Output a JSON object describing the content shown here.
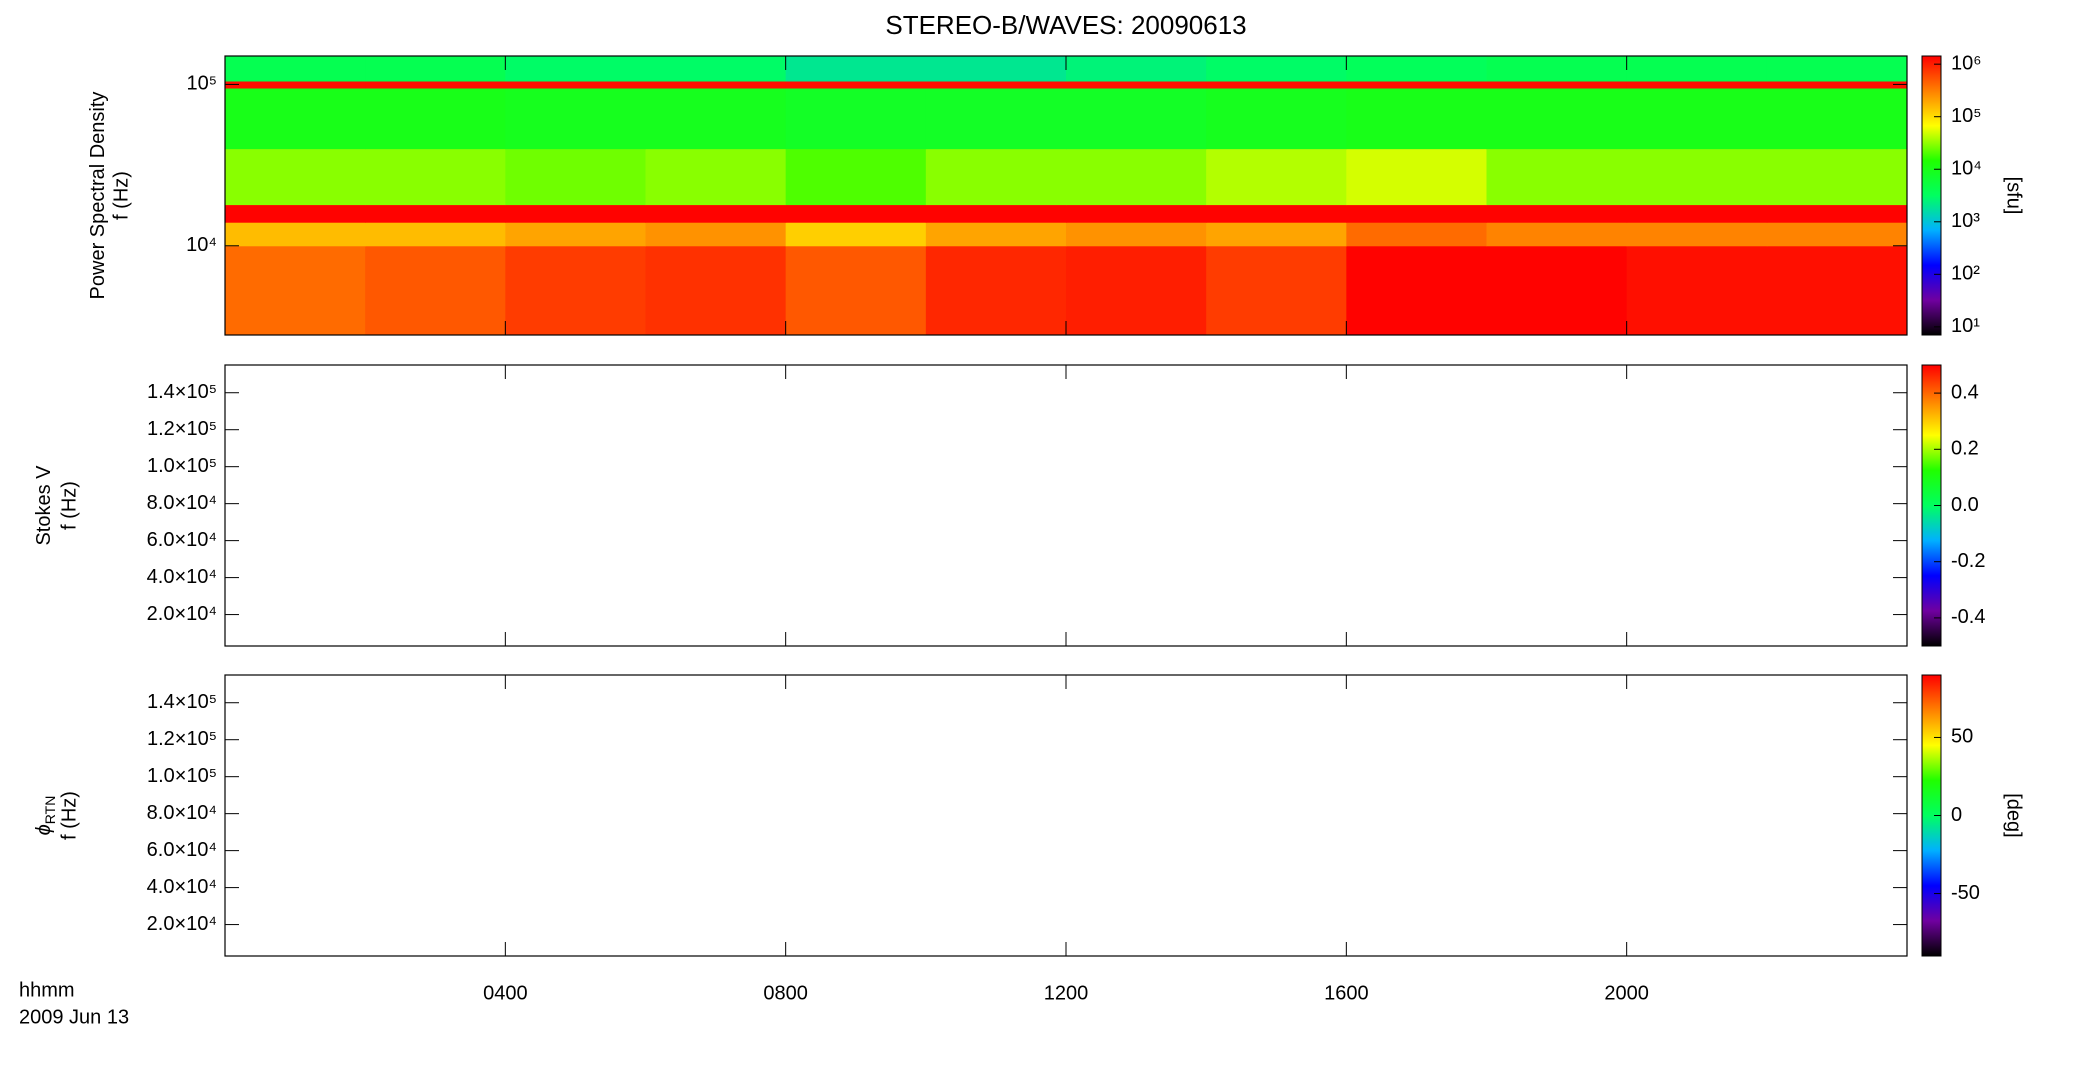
{
  "title": "STEREO-B/WAVES: 20090613",
  "x_axis": {
    "label": "hhmm",
    "date": "2009 Jun 13",
    "xlim": [
      0,
      24
    ],
    "xticks": [
      {
        "value": 4,
        "label": "0400"
      },
      {
        "value": 8,
        "label": "0800"
      },
      {
        "value": 12,
        "label": "1200"
      },
      {
        "value": 16,
        "label": "1600"
      },
      {
        "value": 20,
        "label": "2000"
      }
    ]
  },
  "colormap": [
    "#000000",
    "#7000a0",
    "#0000ff",
    "#00b0ff",
    "#00ff60",
    "#20ff00",
    "#ffff00",
    "#ff8000",
    "#ff0000"
  ],
  "chart_data": [
    {
      "type": "heatmap",
      "ylabel": "Power Spectral Density",
      "ylabel2": "f (Hz)",
      "log_y": true,
      "ylim": [
        2800,
        150000
      ],
      "yticks": [
        {
          "value": 10000,
          "label": "10⁴"
        },
        {
          "value": 100000,
          "label": "10⁵"
        }
      ],
      "colorbar": {
        "label": "[sfu]",
        "log": true,
        "clim": [
          7,
          1430000
        ],
        "ticks": [
          {
            "value": 10,
            "label": "10¹"
          },
          {
            "value": 100,
            "label": "10²"
          },
          {
            "value": 1000,
            "label": "10³"
          },
          {
            "value": 10000,
            "label": "10⁴"
          },
          {
            "value": 100000,
            "label": "10⁵"
          },
          {
            "value": 1000000,
            "label": "10⁶"
          }
        ]
      },
      "times": [
        0,
        2,
        4,
        6,
        8,
        10,
        12,
        14,
        16,
        18,
        20,
        22,
        24
      ],
      "freqs": [
        2800,
        10000,
        14000,
        18000,
        40000,
        95000,
        105000,
        150000
      ],
      "values": [
        [
          400000,
          500000,
          700000,
          800000,
          500000,
          900000,
          1000000,
          700000,
          1400000,
          1400000,
          1200000,
          1200000
        ],
        [
          150000,
          150000,
          200000,
          250000,
          120000,
          200000,
          250000,
          200000,
          400000,
          300000,
          300000,
          300000
        ],
        [
          1400000,
          1400000,
          1400000,
          1400000,
          1400000,
          1400000,
          1400000,
          1400000,
          1400000,
          1400000,
          1400000,
          1400000
        ],
        [
          30000,
          30000,
          25000,
          30000,
          20000,
          30000,
          30000,
          40000,
          50000,
          30000,
          30000,
          30000
        ],
        [
          10000,
          10000,
          9000,
          9000,
          8000,
          8000,
          8000,
          9000,
          10000,
          10000,
          10000,
          10000
        ],
        [
          1200000,
          1200000,
          1200000,
          1200000,
          1200000,
          1200000,
          1200000,
          1200000,
          1200000,
          1200000,
          1200000,
          1200000
        ],
        [
          4000,
          4000,
          3000,
          3000,
          2000,
          2000,
          2500,
          3000,
          3500,
          4000,
          4000,
          4000
        ]
      ]
    },
    {
      "type": "heatmap",
      "ylabel": "Stokes V",
      "ylabel2": "f (Hz)",
      "log_y": false,
      "ylim": [
        3000,
        155000
      ],
      "yticks": [
        {
          "value": 20000,
          "label": "2.0×10⁴"
        },
        {
          "value": 40000,
          "label": "4.0×10⁴"
        },
        {
          "value": 60000,
          "label": "6.0×10⁴"
        },
        {
          "value": 80000,
          "label": "8.0×10⁴"
        },
        {
          "value": 100000,
          "label": "1.0×10⁵"
        },
        {
          "value": 120000,
          "label": "1.2×10⁵"
        },
        {
          "value": 140000,
          "label": "1.4×10⁵"
        }
      ],
      "colorbar": {
        "log": false,
        "clim": [
          -0.5,
          0.5
        ],
        "ticks": [
          -0.4,
          -0.2,
          {
            "value": 0,
            "label": "0.0"
          },
          0.2,
          0.4
        ]
      }
    },
    {
      "type": "heatmap",
      "ylabel": "ϕ",
      "ylabel_sub": "RTN",
      "ylabel2": "f (Hz)",
      "log_y": false,
      "ylim": [
        3000,
        155000
      ],
      "yticks": [
        {
          "value": 20000,
          "label": "2.0×10⁴"
        },
        {
          "value": 40000,
          "label": "4.0×10⁴"
        },
        {
          "value": 60000,
          "label": "6.0×10⁴"
        },
        {
          "value": 80000,
          "label": "8.0×10⁴"
        },
        {
          "value": 100000,
          "label": "1.0×10⁵"
        },
        {
          "value": 120000,
          "label": "1.2×10⁵"
        },
        {
          "value": 140000,
          "label": "1.4×10⁵"
        }
      ],
      "colorbar": {
        "label": "[deg]",
        "log": false,
        "clim": [
          -90,
          90
        ],
        "ticks": [
          -50,
          0,
          50
        ]
      }
    }
  ]
}
